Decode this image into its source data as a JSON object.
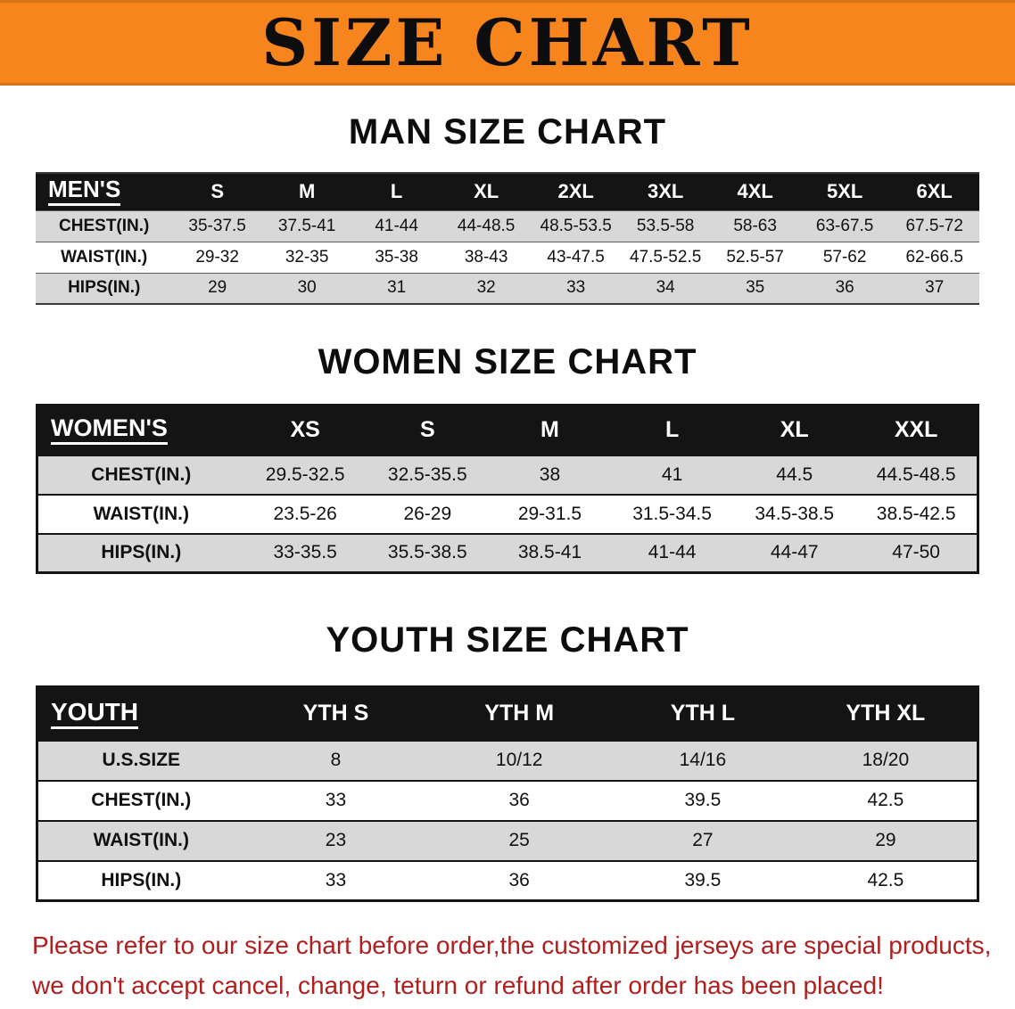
{
  "banner": {
    "title": "SIZE CHART"
  },
  "colors": {
    "banner_bg": "#f6851d",
    "banner_edge": "#d9731a",
    "header_bg": "#141414",
    "row_alt": "#d8d8d8",
    "notice_text": "#b01e1e"
  },
  "sections": {
    "men": {
      "heading": "MAN SIZE CHART",
      "table": {
        "header": [
          "MEN'S",
          "S",
          "M",
          "L",
          "XL",
          "2XL",
          "3XL",
          "4XL",
          "5XL",
          "6XL"
        ],
        "rows": [
          [
            "CHEST(IN.)",
            "35-37.5",
            "37.5-41",
            "41-44",
            "44-48.5",
            "48.5-53.5",
            "53.5-58",
            "58-63",
            "63-67.5",
            "67.5-72"
          ],
          [
            "WAIST(IN.)",
            "29-32",
            "32-35",
            "35-38",
            "38-43",
            "43-47.5",
            "47.5-52.5",
            "52.5-57",
            "57-62",
            "62-66.5"
          ],
          [
            "HIPS(IN.)",
            "29",
            "30",
            "31",
            "32",
            "33",
            "34",
            "35",
            "36",
            "37"
          ]
        ]
      }
    },
    "women": {
      "heading": "WOMEN SIZE CHART",
      "table": {
        "header": [
          "WOMEN'S",
          "XS",
          "S",
          "M",
          "L",
          "XL",
          "XXL"
        ],
        "rows": [
          [
            "CHEST(IN.)",
            "29.5-32.5",
            "32.5-35.5",
            "38",
            "41",
            "44.5",
            "44.5-48.5"
          ],
          [
            "WAIST(IN.)",
            "23.5-26",
            "26-29",
            "29-31.5",
            "31.5-34.5",
            "34.5-38.5",
            "38.5-42.5"
          ],
          [
            "HIPS(IN.)",
            "33-35.5",
            "35.5-38.5",
            "38.5-41",
            "41-44",
            "44-47",
            "47-50"
          ]
        ]
      }
    },
    "youth": {
      "heading": "YOUTH SIZE CHART",
      "table": {
        "header": [
          "YOUTH",
          "YTH S",
          "YTH M",
          "YTH L",
          "YTH XL"
        ],
        "rows": [
          [
            "U.S.SIZE",
            "8",
            "10/12",
            "14/16",
            "18/20"
          ],
          [
            "CHEST(IN.)",
            "33",
            "36",
            "39.5",
            "42.5"
          ],
          [
            "WAIST(IN.)",
            "23",
            "25",
            "27",
            "29"
          ],
          [
            "HIPS(IN.)",
            "33",
            "36",
            "39.5",
            "42.5"
          ]
        ]
      }
    }
  },
  "footer": {
    "line1": "Please refer to our size chart before order,the customized jerseys are special products,",
    "line2": "we don't accept cancel, change, teturn or refund after order has been placed!"
  }
}
